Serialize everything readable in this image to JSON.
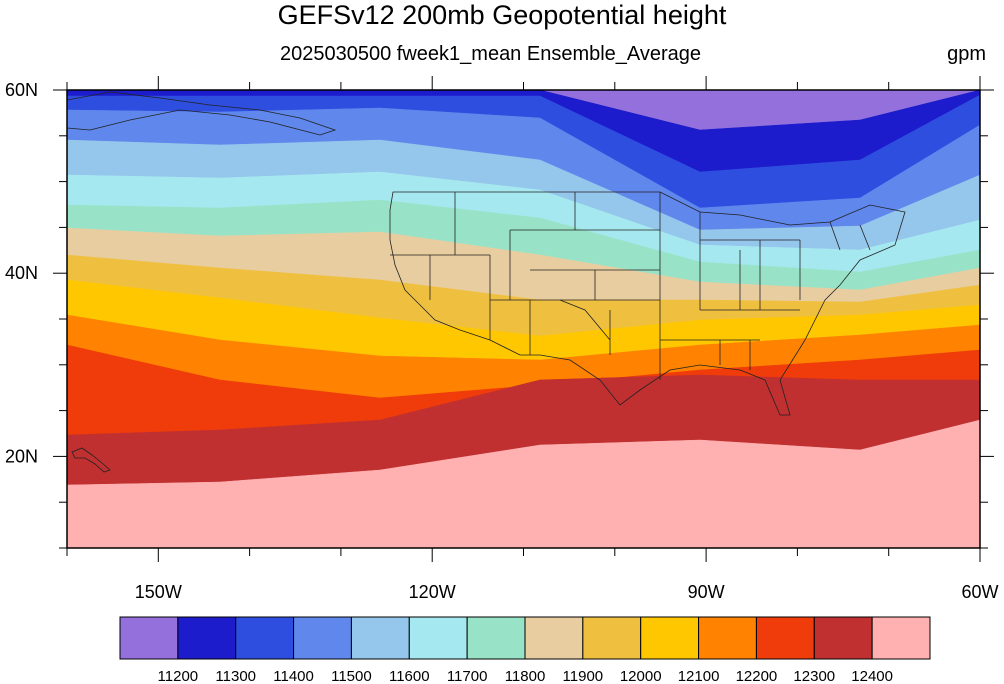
{
  "title": "GEFSv12 200mb Geopotential height",
  "subtitle": "2025030500 fweek1_mean Ensemble_Average",
  "units": "gpm",
  "map": {
    "lon_range": [
      -160,
      -60
    ],
    "lat_range": [
      10,
      60
    ],
    "lon_ticks": [
      {
        "lon": -150,
        "label": "150W"
      },
      {
        "lon": -120,
        "label": "120W"
      },
      {
        "lon": -90,
        "label": "90W"
      },
      {
        "lon": -60,
        "label": "60W"
      }
    ],
    "lat_ticks": [
      {
        "lat": 60,
        "label": "60N"
      },
      {
        "lat": 40,
        "label": "40N"
      },
      {
        "lat": 20,
        "label": "20N"
      }
    ]
  },
  "colorbar": {
    "colors": [
      "#9370db",
      "#1c1ccc",
      "#2e4ee0",
      "#5f87ec",
      "#95c6eb",
      "#a6e8f0",
      "#98e3c8",
      "#e8cda0",
      "#efc040",
      "#ffc700",
      "#ff8200",
      "#ef3c0a",
      "#c03030",
      "#ffb0b0"
    ],
    "labels": [
      "11200",
      "11300",
      "11400",
      "11500",
      "11600",
      "11700",
      "11800",
      "11900",
      "12000",
      "12100",
      "12200",
      "12300",
      "12400"
    ]
  }
}
